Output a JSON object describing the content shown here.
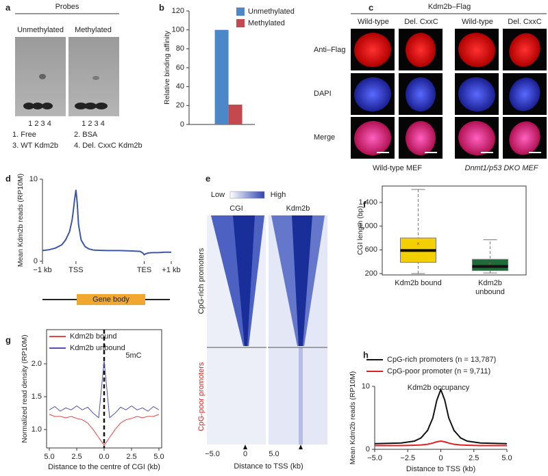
{
  "panels": {
    "a": {
      "label": "a",
      "probes": "Probes",
      "unmethylated": "Unmethylated",
      "methylated": "Methylated",
      "lanes": [
        "1 2 3 4",
        "1 2 3 4"
      ],
      "legend": [
        "1. Free",
        "2. BSA",
        "3. WT Kdm2b",
        "4. Del. CxxC Kdm2b"
      ]
    },
    "c": {
      "label": "c",
      "title": "Kdm2b–Flag",
      "columns": [
        "Wild-type",
        "Del. CxxC",
        "Wild-type",
        "Del. CxxC"
      ],
      "rows": [
        "Anti–Flag",
        "DAPI",
        "Merge"
      ],
      "groups": [
        "Wild-type MEF",
        "Dnmt1/p53 DKO MEF"
      ]
    },
    "d": {
      "gene_body": "Gene body"
    },
    "e": {
      "label": "e",
      "low": "Low",
      "high": "High",
      "columns": [
        "CGI",
        "Kdm2b"
      ],
      "rows": [
        "CpG-rich promoters",
        "CpG-poor promoters"
      ],
      "ticks": [
        "−5.0",
        "0",
        "5.0"
      ],
      "xlabel": "Distance to TSS (kb)"
    }
  },
  "chart_data": [
    {
      "type": "bar",
      "panel": "b",
      "ylabel": "Relative binding affinity",
      "categories": [
        null
      ],
      "series": [
        {
          "name": "Unmethylated",
          "color": "#4d87c7",
          "values": [
            100
          ]
        },
        {
          "name": "Methylated",
          "color": "#c4494f",
          "values": [
            21
          ]
        }
      ],
      "ylim": [
        0,
        120
      ],
      "yticks": [
        0,
        20,
        40,
        60,
        80,
        100,
        120
      ],
      "legend": "upper right"
    },
    {
      "type": "line",
      "panel": "d",
      "ylabel": "Mean Kdm2b reads (RP10M)",
      "x": [
        0,
        5,
        10,
        15,
        18,
        21,
        23,
        24,
        25,
        26,
        27,
        28,
        30,
        33,
        36,
        40,
        50,
        60,
        70,
        76,
        78,
        79,
        80,
        82,
        85,
        90,
        95,
        100
      ],
      "series": [
        {
          "name": null,
          "color": "#3c56a8",
          "values": [
            1.3,
            1.4,
            1.6,
            2.0,
            2.6,
            3.6,
            5.0,
            6.2,
            7.6,
            8.7,
            7.0,
            4.5,
            2.6,
            1.8,
            1.5,
            1.35,
            1.3,
            1.3,
            1.25,
            1.2,
            1.0,
            0.8,
            0.9,
            1.0,
            1.05,
            1.05,
            1.1,
            1.1
          ]
        }
      ],
      "xlim": [
        0,
        100
      ],
      "xticks": [
        {
          "value": 0,
          "label": "−1 kb"
        },
        {
          "value": 26,
          "label": "TSS"
        },
        {
          "value": 79,
          "label": "TES"
        },
        {
          "value": 100,
          "label": "+1 kb"
        }
      ],
      "ylim": [
        0,
        10
      ],
      "yticks": [
        0,
        10
      ]
    },
    {
      "type": "box",
      "panel": "f",
      "ylabel": "CGI length (bp)",
      "categories": [
        "Kdm2b bound",
        "Kdm2b unbound"
      ],
      "boxes": [
        {
          "low": 200,
          "q1": 390,
          "median": 590,
          "q3": 800,
          "high": 1620,
          "mean": 700,
          "color": "#f5d000"
        },
        {
          "low": 210,
          "q1": 250,
          "median": 320,
          "q3": 440,
          "high": 770,
          "mean": 370,
          "color": "#1f6b3a"
        }
      ],
      "ylim": [
        177,
        1677
      ],
      "yticks": [
        200,
        600,
        {
          "value": 1000,
          "label": "1,000"
        },
        {
          "value": 1400,
          "label": "1,400"
        }
      ]
    },
    {
      "type": "line",
      "panel": "g",
      "ylabel": "Normalized read density (RP10M)",
      "xlabel": "Distance to the centre of CGI (kb)",
      "annotation": "5mC",
      "x": [
        -5,
        -4.5,
        -4,
        -3.5,
        -3,
        -2.5,
        -2,
        -1.5,
        -1,
        -0.5,
        0,
        0.5,
        1,
        1.5,
        2,
        2.5,
        3,
        3.5,
        4,
        4.5,
        5
      ],
      "series": [
        {
          "name": "Kdm2b bound",
          "color": "#e8423f",
          "values": [
            1.23,
            1.2,
            1.2,
            1.18,
            1.2,
            1.17,
            1.15,
            1.1,
            1.0,
            0.88,
            0.76,
            0.88,
            1.0,
            1.1,
            1.15,
            1.17,
            1.2,
            1.18,
            1.2,
            1.2,
            1.23
          ]
        },
        {
          "name": "Kdm2b unbound",
          "color": "#5050b0",
          "values": [
            1.3,
            1.35,
            1.28,
            1.33,
            1.3,
            1.36,
            1.3,
            1.34,
            1.25,
            1.18,
            2.05,
            1.18,
            1.25,
            1.34,
            1.3,
            1.36,
            1.3,
            1.33,
            1.28,
            1.35,
            1.3
          ]
        }
      ],
      "xlim": [
        -5.25,
        5.25
      ],
      "xticks": [
        {
          "value": -5,
          "label": "5.0"
        },
        {
          "value": -2.5,
          "label": "2.5"
        },
        {
          "value": 0,
          "label": "0.0"
        },
        {
          "value": 2.5,
          "label": "2.5"
        },
        {
          "value": 5,
          "label": "5.0"
        }
      ],
      "ylim": [
        0.72,
        2.52
      ],
      "yticks": [
        {
          "value": 1,
          "label": "1.0"
        },
        1.5,
        {
          "value": 2,
          "label": "2.0"
        }
      ],
      "legend": "upper left"
    },
    {
      "type": "line",
      "panel": "h",
      "ylabel": "Mean Kdm2b reads (RP10M)",
      "xlabel": "Distance to TSS (kb)",
      "annotation": "Kdm2b occupancy",
      "x": [
        -5,
        -4,
        -3,
        -2,
        -1.5,
        -1,
        -0.6,
        -0.3,
        0,
        0.3,
        0.6,
        1,
        1.5,
        2,
        3,
        4,
        5
      ],
      "series": [
        {
          "name": "CpG-rich promoters (n = 13,787)",
          "color": "#111111",
          "values": [
            0.9,
            0.95,
            1.0,
            1.3,
            1.8,
            3.0,
            5.0,
            7.8,
            9.5,
            7.8,
            5.0,
            3.0,
            1.8,
            1.3,
            1.0,
            0.95,
            0.9
          ]
        },
        {
          "name": "CpG-poor promoter (n = 9,711)",
          "color": "#e02020",
          "values": [
            0.6,
            0.6,
            0.6,
            0.65,
            0.7,
            0.8,
            1.0,
            1.2,
            1.3,
            1.2,
            1.0,
            0.8,
            0.7,
            0.65,
            0.6,
            0.6,
            0.6
          ]
        }
      ],
      "xlim": [
        -5,
        5
      ],
      "xticks": [
        {
          "value": -5,
          "label": "−5.0"
        },
        {
          "value": -2.5,
          "label": "−2.5"
        },
        0,
        {
          "value": 2.5,
          "label": "2.5"
        },
        {
          "value": 5,
          "label": "5.0"
        }
      ],
      "ylim": [
        0,
        10
      ],
      "yticks": [
        0,
        10
      ],
      "legend": "upper left"
    }
  ]
}
